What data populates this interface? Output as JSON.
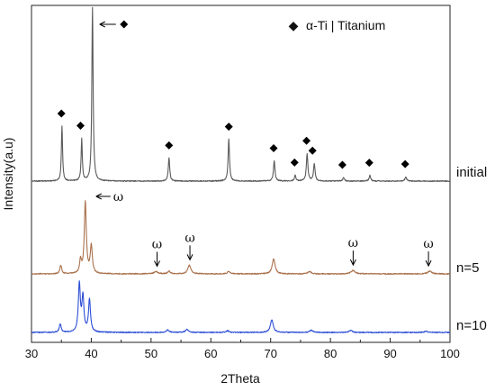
{
  "chart_data": {
    "type": "line",
    "xlabel": "2Theta",
    "ylabel": "Intensity(a.u)",
    "xlim": [
      30,
      100
    ],
    "xticks": [
      30,
      40,
      50,
      60,
      70,
      80,
      90,
      100
    ],
    "grid": false,
    "legend": {
      "symbol": "◆",
      "text": "α-Ti | Titanium",
      "placement": "top-right"
    },
    "series": [
      {
        "name": "initial",
        "color": "#5a5a5a",
        "baseline": 0,
        "peaks": [
          {
            "x": 35.1,
            "h": 0.38,
            "w": 0.12
          },
          {
            "x": 38.4,
            "h": 0.29,
            "w": 0.12
          },
          {
            "x": 40.2,
            "h": 1.2,
            "w": 0.13
          },
          {
            "x": 53.0,
            "h": 0.16,
            "w": 0.14
          },
          {
            "x": 63.0,
            "h": 0.29,
            "w": 0.14
          },
          {
            "x": 70.6,
            "h": 0.14,
            "w": 0.15
          },
          {
            "x": 74.1,
            "h": 0.04,
            "w": 0.15
          },
          {
            "x": 76.1,
            "h": 0.19,
            "w": 0.15
          },
          {
            "x": 77.3,
            "h": 0.12,
            "w": 0.15
          },
          {
            "x": 82.2,
            "h": 0.025,
            "w": 0.15
          },
          {
            "x": 86.6,
            "h": 0.04,
            "w": 0.15
          },
          {
            "x": 92.6,
            "h": 0.03,
            "w": 0.15
          }
        ]
      },
      {
        "name": "n=5",
        "color": "#a9714c",
        "baseline": 0,
        "peaks": [
          {
            "x": 34.9,
            "h": 0.04,
            "w": 0.18
          },
          {
            "x": 38.2,
            "h": 0.06,
            "w": 0.18
          },
          {
            "x": 39.0,
            "h": 0.33,
            "w": 0.2
          },
          {
            "x": 40.0,
            "h": 0.13,
            "w": 0.2
          },
          {
            "x": 50.8,
            "h": 0.01,
            "w": 0.4
          },
          {
            "x": 53.0,
            "h": 0.012,
            "w": 0.25
          },
          {
            "x": 56.4,
            "h": 0.04,
            "w": 0.3
          },
          {
            "x": 63.0,
            "h": 0.012,
            "w": 0.25
          },
          {
            "x": 70.5,
            "h": 0.07,
            "w": 0.28
          },
          {
            "x": 76.5,
            "h": 0.012,
            "w": 0.3
          },
          {
            "x": 83.8,
            "h": 0.016,
            "w": 0.4
          },
          {
            "x": 96.6,
            "h": 0.012,
            "w": 0.4
          }
        ]
      },
      {
        "name": "n=10",
        "color": "#2d4fd6",
        "baseline": 0,
        "peaks": [
          {
            "x": 34.8,
            "h": 0.04,
            "w": 0.18
          },
          {
            "x": 38.0,
            "h": 0.22,
            "w": 0.2
          },
          {
            "x": 38.6,
            "h": 0.16,
            "w": 0.2
          },
          {
            "x": 39.7,
            "h": 0.15,
            "w": 0.2
          },
          {
            "x": 52.8,
            "h": 0.012,
            "w": 0.25
          },
          {
            "x": 56.0,
            "h": 0.014,
            "w": 0.3
          },
          {
            "x": 62.8,
            "h": 0.008,
            "w": 0.25
          },
          {
            "x": 70.2,
            "h": 0.06,
            "w": 0.28
          },
          {
            "x": 76.8,
            "h": 0.01,
            "w": 0.3
          },
          {
            "x": 83.4,
            "h": 0.01,
            "w": 0.3
          },
          {
            "x": 96.0,
            "h": 0.006,
            "w": 0.3
          }
        ]
      }
    ],
    "diamond_markers": [
      {
        "x": 35.0,
        "series": "initial"
      },
      {
        "x": 38.2,
        "series": "initial"
      },
      {
        "x": 53.0,
        "series": "initial"
      },
      {
        "x": 63.0,
        "series": "initial"
      },
      {
        "x": 70.5,
        "series": "initial"
      },
      {
        "x": 74.0,
        "series": "initial"
      },
      {
        "x": 76.0,
        "series": "initial"
      },
      {
        "x": 77.0,
        "series": "initial"
      },
      {
        "x": 82.0,
        "series": "initial"
      },
      {
        "x": 86.5,
        "series": "initial"
      },
      {
        "x": 92.5,
        "series": "initial"
      }
    ],
    "omega_markers": [
      {
        "x": 51.0,
        "label": "ω"
      },
      {
        "x": 56.5,
        "label": "ω"
      },
      {
        "x": 83.8,
        "label": "ω"
      },
      {
        "x": 96.4,
        "label": "ω"
      }
    ],
    "top_annotation": {
      "x": 40.2,
      "symbol": "◆"
    },
    "omega_peak_annotation": {
      "x": 39.0,
      "label": "ω"
    }
  }
}
